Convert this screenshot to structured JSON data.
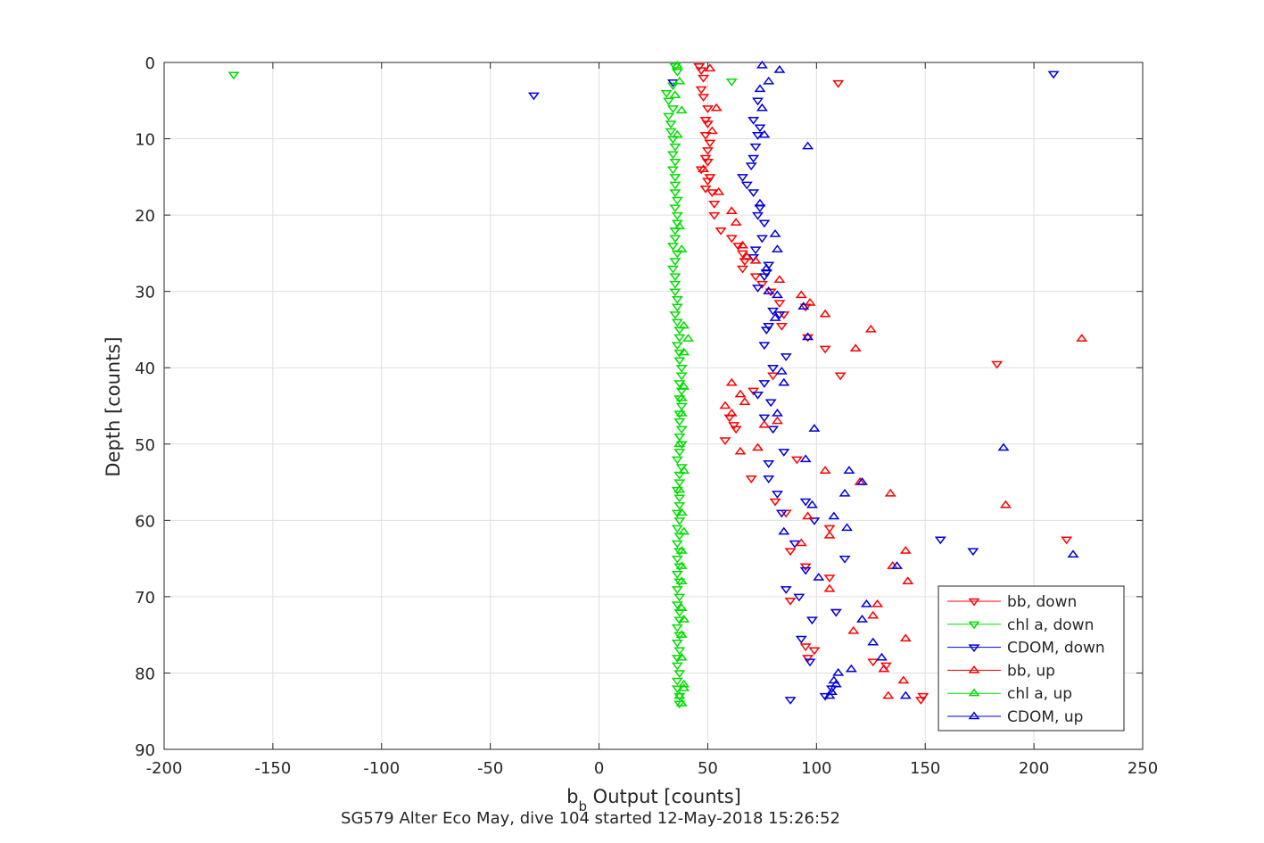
{
  "chart_data": {
    "type": "scatter",
    "title": "",
    "xlabel_main": "b",
    "xlabel_sub": "b",
    "xlabel_rest": " Output [counts]",
    "ylabel": "Depth [counts]",
    "caption": "SG579 Alter Eco May, dive 104 started 12-May-2018 15:26:52",
    "xlim": [
      -200,
      250
    ],
    "ylim": [
      0,
      90
    ],
    "y_reversed": true,
    "grid": true,
    "legend_position": "bottom-right",
    "x_ticks": [
      "-200",
      "-150",
      "-100",
      "-50",
      "0",
      "50",
      "100",
      "150",
      "200",
      "250"
    ],
    "x_tick_values": [
      -200,
      -150,
      -100,
      -50,
      0,
      50,
      100,
      150,
      200,
      250
    ],
    "y_ticks": [
      "0",
      "10",
      "20",
      "30",
      "40",
      "50",
      "60",
      "70",
      "80",
      "90"
    ],
    "y_tick_values": [
      0,
      10,
      20,
      30,
      40,
      50,
      60,
      70,
      80,
      90
    ],
    "series": [
      {
        "name": "bb, down",
        "color": "#ff0000",
        "marker": "triangle-down",
        "points": [
          [
            46,
            0.5
          ],
          [
            47,
            1
          ],
          [
            48,
            2
          ],
          [
            110,
            2.7
          ],
          [
            47,
            3.5
          ],
          [
            48,
            4.5
          ],
          [
            50,
            6
          ],
          [
            49,
            7.5
          ],
          [
            50,
            8
          ],
          [
            49,
            9.5
          ],
          [
            51,
            10.5
          ],
          [
            50,
            11.5
          ],
          [
            49,
            12.5
          ],
          [
            50,
            13
          ],
          [
            47,
            14
          ],
          [
            51,
            15
          ],
          [
            50,
            15.5
          ],
          [
            49,
            16.5
          ],
          [
            52,
            17
          ],
          [
            53,
            18.5
          ],
          [
            53,
            20
          ],
          [
            56,
            22
          ],
          [
            61,
            23
          ],
          [
            64,
            24
          ],
          [
            66,
            25
          ],
          [
            67,
            26
          ],
          [
            66,
            27
          ],
          [
            72,
            28
          ],
          [
            75,
            29
          ],
          [
            79,
            30
          ],
          [
            83,
            31.5
          ],
          [
            95,
            32
          ],
          [
            85,
            33
          ],
          [
            84,
            34.5
          ],
          [
            96,
            36
          ],
          [
            104,
            37.5
          ],
          [
            183,
            39.5
          ],
          [
            80,
            41
          ],
          [
            111,
            41
          ],
          [
            71,
            43
          ],
          [
            60,
            46.5
          ],
          [
            62,
            47.5
          ],
          [
            63,
            48
          ],
          [
            58,
            49.5
          ],
          [
            91,
            52
          ],
          [
            70,
            54.5
          ],
          [
            81,
            57.5
          ],
          [
            86,
            59
          ],
          [
            106,
            61
          ],
          [
            88,
            64
          ],
          [
            95,
            66
          ],
          [
            106,
            67.5
          ],
          [
            88,
            70.5
          ],
          [
            109,
            72
          ],
          [
            95,
            76.5
          ],
          [
            99,
            77
          ],
          [
            96,
            78
          ],
          [
            215,
            62.5
          ],
          [
            126,
            78.5
          ],
          [
            132,
            79
          ],
          [
            149,
            83
          ],
          [
            148,
            83.5
          ]
        ]
      },
      {
        "name": "chl a, down",
        "color": "#00dd00",
        "marker": "triangle-down",
        "points": [
          [
            -168,
            1.6
          ],
          [
            61,
            2.5
          ],
          [
            35,
            0.5
          ],
          [
            36,
            1.2
          ],
          [
            34,
            3
          ],
          [
            31,
            4
          ],
          [
            32,
            5
          ],
          [
            34,
            6
          ],
          [
            32,
            7
          ],
          [
            33,
            8
          ],
          [
            33,
            9
          ],
          [
            34,
            10
          ],
          [
            35,
            11
          ],
          [
            34,
            12
          ],
          [
            35,
            13
          ],
          [
            34,
            14
          ],
          [
            35,
            15
          ],
          [
            35,
            16
          ],
          [
            35,
            17
          ],
          [
            36,
            18
          ],
          [
            35,
            19
          ],
          [
            36,
            20
          ],
          [
            36,
            21
          ],
          [
            35,
            22
          ],
          [
            35,
            23
          ],
          [
            34,
            24
          ],
          [
            36,
            25
          ],
          [
            35,
            26
          ],
          [
            34,
            27
          ],
          [
            35,
            28
          ],
          [
            35,
            29
          ],
          [
            35,
            30
          ],
          [
            36,
            31
          ],
          [
            36,
            32
          ],
          [
            35,
            33
          ],
          [
            36,
            34
          ],
          [
            37,
            35
          ],
          [
            37,
            36
          ],
          [
            36,
            37
          ],
          [
            37,
            38
          ],
          [
            37,
            39
          ],
          [
            38,
            40
          ],
          [
            38,
            41
          ],
          [
            37,
            42
          ],
          [
            38,
            43
          ],
          [
            37,
            44
          ],
          [
            38,
            45
          ],
          [
            37,
            46
          ],
          [
            37,
            47
          ],
          [
            38,
            48
          ],
          [
            37,
            49
          ],
          [
            38,
            50
          ],
          [
            37,
            51
          ],
          [
            36,
            52
          ],
          [
            38,
            53
          ],
          [
            37,
            54
          ],
          [
            37,
            55
          ],
          [
            36,
            56
          ],
          [
            37,
            57
          ],
          [
            37,
            58
          ],
          [
            36,
            59
          ],
          [
            37,
            60
          ],
          [
            36,
            61
          ],
          [
            37,
            62
          ],
          [
            36,
            63
          ],
          [
            37,
            64
          ],
          [
            36,
            65
          ],
          [
            37,
            66
          ],
          [
            36,
            67
          ],
          [
            37,
            68
          ],
          [
            36,
            69
          ],
          [
            37,
            70
          ],
          [
            36,
            71
          ],
          [
            37,
            72
          ],
          [
            37,
            73
          ],
          [
            36,
            74
          ],
          [
            37,
            75
          ],
          [
            36,
            76
          ],
          [
            37,
            77
          ],
          [
            36,
            78
          ],
          [
            36,
            79
          ],
          [
            37,
            80
          ],
          [
            36,
            81
          ],
          [
            36,
            82
          ],
          [
            37,
            83
          ],
          [
            37,
            84
          ]
        ]
      },
      {
        "name": "CDOM, down",
        "color": "#0000dd",
        "marker": "triangle-down",
        "points": [
          [
            209,
            1.5
          ],
          [
            -30,
            4.3
          ],
          [
            34,
            2.6
          ],
          [
            73,
            5
          ],
          [
            71,
            7.5
          ],
          [
            74,
            8.5
          ],
          [
            73,
            9.5
          ],
          [
            72,
            11
          ],
          [
            71,
            12.5
          ],
          [
            70,
            13.5
          ],
          [
            66,
            15
          ],
          [
            68,
            16
          ],
          [
            71,
            17
          ],
          [
            74,
            19
          ],
          [
            73,
            20
          ],
          [
            76,
            21
          ],
          [
            75,
            23
          ],
          [
            72,
            24.5
          ],
          [
            71,
            25.5
          ],
          [
            78,
            26.5
          ],
          [
            77,
            27.5
          ],
          [
            76,
            28
          ],
          [
            73,
            29.5
          ],
          [
            80,
            32.5
          ],
          [
            83,
            33
          ],
          [
            78,
            34.5
          ],
          [
            77,
            35
          ],
          [
            76,
            37
          ],
          [
            86,
            38.5
          ],
          [
            80,
            40
          ],
          [
            76,
            42
          ],
          [
            73,
            43.5
          ],
          [
            79,
            44.5
          ],
          [
            76,
            46.5
          ],
          [
            80,
            48
          ],
          [
            85,
            51
          ],
          [
            78,
            52.5
          ],
          [
            78,
            54.5
          ],
          [
            82,
            56.5
          ],
          [
            95,
            57.5
          ],
          [
            84,
            59
          ],
          [
            99,
            60
          ],
          [
            90,
            63
          ],
          [
            113,
            65
          ],
          [
            157,
            62.5
          ],
          [
            172,
            64
          ],
          [
            86,
            69
          ],
          [
            92,
            70
          ],
          [
            98,
            73
          ],
          [
            109,
            72
          ],
          [
            93,
            75.5
          ],
          [
            97,
            78.5
          ],
          [
            107,
            82
          ],
          [
            104,
            83
          ],
          [
            95,
            66.5
          ],
          [
            88,
            83.5
          ]
        ]
      },
      {
        "name": "bb, up",
        "color": "#ff0000",
        "marker": "triangle-up",
        "points": [
          [
            51,
            0.8
          ],
          [
            54,
            6
          ],
          [
            52,
            9
          ],
          [
            48,
            14
          ],
          [
            55,
            17
          ],
          [
            61,
            19.5
          ],
          [
            63,
            21
          ],
          [
            66,
            24
          ],
          [
            68,
            25.5
          ],
          [
            72,
            26
          ],
          [
            83,
            28.5
          ],
          [
            93,
            30.5
          ],
          [
            97,
            31.5
          ],
          [
            104,
            33
          ],
          [
            125,
            35
          ],
          [
            118,
            37.5
          ],
          [
            222,
            36.2
          ],
          [
            104,
            53.5
          ],
          [
            120,
            55
          ],
          [
            134,
            56.5
          ],
          [
            187,
            58
          ],
          [
            96,
            59.5
          ],
          [
            106,
            62
          ],
          [
            93,
            63
          ],
          [
            141,
            64
          ],
          [
            135,
            66
          ],
          [
            142,
            68
          ],
          [
            106,
            69
          ],
          [
            117,
            74.5
          ],
          [
            128,
            71
          ],
          [
            126,
            72.5
          ],
          [
            141,
            75.5
          ],
          [
            131,
            79.5
          ],
          [
            140,
            81
          ],
          [
            133,
            83
          ],
          [
            61,
            42
          ],
          [
            65,
            43.5
          ],
          [
            67,
            44.5
          ],
          [
            58,
            45
          ],
          [
            61,
            46
          ],
          [
            76,
            47.5
          ],
          [
            73,
            50.5
          ],
          [
            65,
            51
          ],
          [
            82,
            47
          ]
        ]
      },
      {
        "name": "chl a, up",
        "color": "#00dd00",
        "marker": "triangle-up",
        "points": [
          [
            36,
            0.4
          ],
          [
            37,
            2.5
          ],
          [
            35,
            4.3
          ],
          [
            38,
            6.3
          ],
          [
            36,
            9.5
          ],
          [
            37,
            21.5
          ],
          [
            38,
            24.5
          ],
          [
            39,
            34.5
          ],
          [
            41,
            36.2
          ],
          [
            39,
            38
          ],
          [
            39,
            42.5
          ],
          [
            38,
            44
          ],
          [
            38,
            46
          ],
          [
            37,
            50
          ],
          [
            39,
            53.5
          ],
          [
            37,
            56
          ],
          [
            38,
            59
          ],
          [
            39,
            61.5
          ],
          [
            38,
            64
          ],
          [
            38,
            66
          ],
          [
            38,
            68
          ],
          [
            38,
            71.5
          ],
          [
            39,
            73
          ],
          [
            38,
            75
          ],
          [
            38,
            78
          ],
          [
            39,
            81.5
          ],
          [
            39,
            82
          ],
          [
            37,
            83
          ],
          [
            38,
            84
          ]
        ]
      },
      {
        "name": "CDOM, up",
        "color": "#0000dd",
        "marker": "triangle-up",
        "points": [
          [
            75,
            0.4
          ],
          [
            83,
            1
          ],
          [
            78,
            2.5
          ],
          [
            74,
            3.5
          ],
          [
            75,
            6
          ],
          [
            76,
            9.5
          ],
          [
            96,
            11
          ],
          [
            74,
            18.5
          ],
          [
            81,
            22.5
          ],
          [
            82,
            24.5
          ],
          [
            77,
            27
          ],
          [
            78,
            30
          ],
          [
            82,
            30.5
          ],
          [
            94,
            32
          ],
          [
            81,
            33.5
          ],
          [
            96,
            36
          ],
          [
            84,
            40.5
          ],
          [
            85,
            42
          ],
          [
            82,
            46
          ],
          [
            99,
            48
          ],
          [
            186,
            50.5
          ],
          [
            95,
            52
          ],
          [
            115,
            53.5
          ],
          [
            121,
            55
          ],
          [
            113,
            56.5
          ],
          [
            98,
            58
          ],
          [
            108,
            59.5
          ],
          [
            114,
            61
          ],
          [
            85,
            61.5
          ],
          [
            218,
            64.5
          ],
          [
            137,
            66
          ],
          [
            101,
            67.5
          ],
          [
            123,
            71
          ],
          [
            126,
            76
          ],
          [
            130,
            78
          ],
          [
            116,
            79.5
          ],
          [
            110,
            80
          ],
          [
            108,
            81
          ],
          [
            109,
            81.5
          ],
          [
            107,
            82.5
          ],
          [
            106,
            83
          ],
          [
            141,
            83
          ],
          [
            121,
            73
          ]
        ]
      }
    ]
  }
}
